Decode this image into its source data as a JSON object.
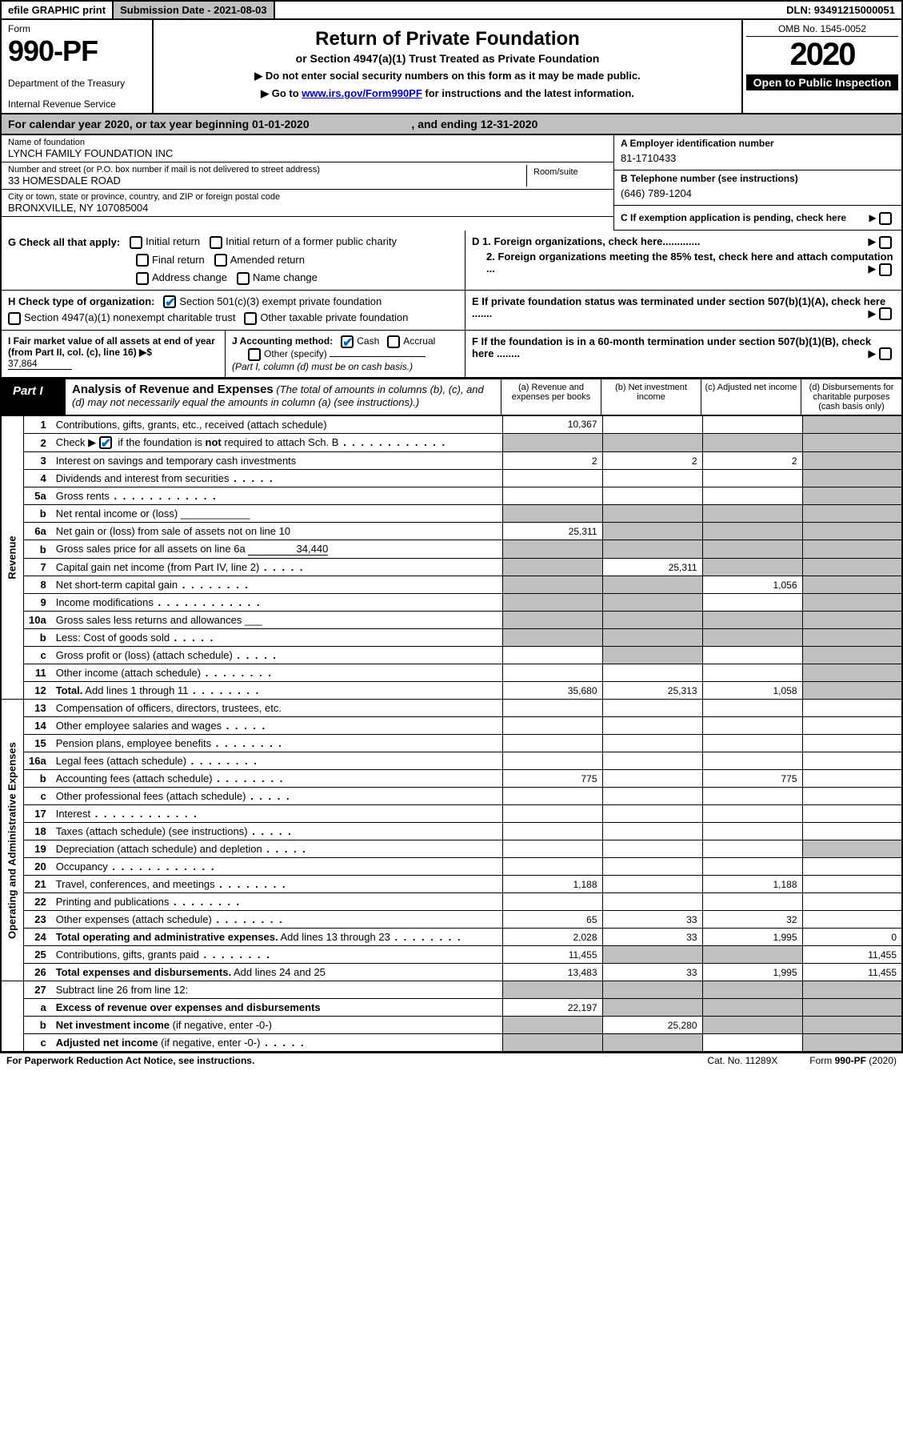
{
  "top": {
    "efile": "efile GRAPHIC print",
    "subdate_label": "Submission Date - 2021-08-03",
    "dln": "DLN: 93491215000051"
  },
  "header": {
    "form": "Form",
    "num": "990-PF",
    "dept": "Department of the Treasury",
    "irs": "Internal Revenue Service",
    "title": "Return of Private Foundation",
    "sub1": "or Section 4947(a)(1) Trust Treated as Private Foundation",
    "sub2a": "▶ Do not enter social security numbers on this form as it may be made public.",
    "sub2b_pre": "▶ Go to ",
    "sub2b_link": "www.irs.gov/Form990PF",
    "sub2b_post": " for instructions and the latest information.",
    "omb": "OMB No. 1545-0052",
    "year": "2020",
    "open": "Open to Public Inspection"
  },
  "cal": {
    "text": "For calendar year 2020, or tax year beginning 01-01-2020",
    "ending": ", and ending 12-31-2020"
  },
  "info": {
    "name_label": "Name of foundation",
    "name": "LYNCH FAMILY FOUNDATION INC",
    "addr_label": "Number and street (or P.O. box number if mail is not delivered to street address)",
    "addr": "33 HOMESDALE ROAD",
    "room_label": "Room/suite",
    "city_label": "City or town, state or province, country, and ZIP or foreign postal code",
    "city": "BRONXVILLE, NY  107085004",
    "a_label": "A Employer identification number",
    "a_val": "81-1710433",
    "b_label": "B Telephone number (see instructions)",
    "b_val": "(646) 789-1204",
    "c_label": "C  If exemption application is pending, check here"
  },
  "checks": {
    "g": "G Check all that apply:",
    "g1": "Initial return",
    "g2": "Initial return of a former public charity",
    "g3": "Final return",
    "g4": "Amended return",
    "g5": "Address change",
    "g6": "Name change",
    "h": "H Check type of organization:",
    "h1": "Section 501(c)(3) exempt private foundation",
    "h2": "Section 4947(a)(1) nonexempt charitable trust",
    "h3": "Other taxable private foundation",
    "i": "I Fair market value of all assets at end of year (from Part II, col. (c), line 16) ▶$ ",
    "i_val": "37,864",
    "j": "J Accounting method:",
    "j1": "Cash",
    "j2": "Accrual",
    "j3": "Other (specify)",
    "j_note": "(Part I, column (d) must be on cash basis.)",
    "d1a": "D 1. Foreign organizations, check here.............",
    "d1b": "2. Foreign organizations meeting the 85% test, check here and attach computation ...",
    "e": "E  If private foundation status was terminated under section 507(b)(1)(A), check here .......",
    "f": "F  If the foundation is in a 60-month termination under section 507(b)(1)(B), check here ........"
  },
  "part1": {
    "label": "Part I",
    "title": "Analysis of Revenue and Expenses",
    "note": " (The total of amounts in columns (b), (c), and (d) may not necessarily equal the amounts in column (a) (see instructions).)",
    "cols": {
      "a": "(a) Revenue and expenses per books",
      "b": "(b) Net investment income",
      "c": "(c) Adjusted net income",
      "d": "(d) Disbursements for charitable purposes (cash basis only)"
    }
  },
  "sections": {
    "rev": "Revenue",
    "exp": "Operating and Administrative Expenses"
  },
  "rows": [
    {
      "n": "1",
      "t": "Contributions, gifts, grants, etc., received (attach schedule)",
      "a": "10,367",
      "b": "",
      "c": "",
      "shadeD": true
    },
    {
      "n": "2",
      "t": "Check ▶ __ if the foundation is <b>not</b> required to attach Sch. B",
      "check2": true,
      "dots": "dots",
      "shadeAll": true
    },
    {
      "n": "3",
      "t": "Interest on savings and temporary cash investments",
      "a": "2",
      "b": "2",
      "c": "2",
      "shadeD": true
    },
    {
      "n": "4",
      "t": "Dividends and interest from securities",
      "dots": "dots-s",
      "shadeD": true
    },
    {
      "n": "5a",
      "t": "Gross rents",
      "dots": "dots",
      "shadeD": true
    },
    {
      "n": "b",
      "t": "Net rental income or (loss) ____________",
      "shadeAll": true
    },
    {
      "n": "6a",
      "t": "Net gain or (loss) from sale of assets not on line 10",
      "a": "25,311",
      "shadeBCD": true,
      "shadeD": true
    },
    {
      "n": "b",
      "t": "Gross sales price for all assets on line 6a ________",
      "bval": "34,440",
      "shadeAll": true
    },
    {
      "n": "7",
      "t": "Capital gain net income (from Part IV, line 2)",
      "dots": "dots-s",
      "b": "25,311",
      "shadeA": true,
      "shadeCD": true
    },
    {
      "n": "8",
      "t": "Net short-term capital gain",
      "dots": "dots-m",
      "c": "1,056",
      "shadeAB": true,
      "shadeD": true
    },
    {
      "n": "9",
      "t": "Income modifications",
      "dots": "dots",
      "shadeAB": true,
      "shadeD": true
    },
    {
      "n": "10a",
      "t": "Gross sales less returns and allowances ___",
      "shadeAll": true
    },
    {
      "n": "b",
      "t": "Less: Cost of goods sold",
      "dots": "dots-s",
      "extra": "___",
      "shadeAll": true
    },
    {
      "n": "c",
      "t": "Gross profit or (loss) (attach schedule)",
      "dots": "dots-s",
      "shadeB": true,
      "shadeD": true
    },
    {
      "n": "11",
      "t": "Other income (attach schedule)",
      "dots": "dots-m",
      "shadeD": true
    },
    {
      "n": "12",
      "t": "<b>Total.</b> Add lines 1 through 11",
      "dots": "dots-m",
      "a": "35,680",
      "b": "25,313",
      "c": "1,058",
      "shadeD": true
    }
  ],
  "rows2": [
    {
      "n": "13",
      "t": "Compensation of officers, directors, trustees, etc."
    },
    {
      "n": "14",
      "t": "Other employee salaries and wages",
      "dots": "dots-s"
    },
    {
      "n": "15",
      "t": "Pension plans, employee benefits",
      "dots": "dots-m"
    },
    {
      "n": "16a",
      "t": "Legal fees (attach schedule)",
      "dots": "dots-m"
    },
    {
      "n": "b",
      "t": "Accounting fees (attach schedule)",
      "dots": "dots-m",
      "a": "775",
      "c": "775"
    },
    {
      "n": "c",
      "t": "Other professional fees (attach schedule)",
      "dots": "dots-s"
    },
    {
      "n": "17",
      "t": "Interest",
      "dots": "dots"
    },
    {
      "n": "18",
      "t": "Taxes (attach schedule) (see instructions)",
      "dots": "dots-s"
    },
    {
      "n": "19",
      "t": "Depreciation (attach schedule) and depletion",
      "dots": "dots-s",
      "shadeD": true
    },
    {
      "n": "20",
      "t": "Occupancy",
      "dots": "dots"
    },
    {
      "n": "21",
      "t": "Travel, conferences, and meetings",
      "dots": "dots-m",
      "a": "1,188",
      "c": "1,188"
    },
    {
      "n": "22",
      "t": "Printing and publications",
      "dots": "dots-m"
    },
    {
      "n": "23",
      "t": "Other expenses (attach schedule)",
      "dots": "dots-m",
      "a": "65",
      "b": "33",
      "c": "32"
    },
    {
      "n": "24",
      "t": "<b>Total operating and administrative expenses.</b> Add lines 13 through 23",
      "dots": "dots-m",
      "a": "2,028",
      "b": "33",
      "c": "1,995",
      "d": "0"
    },
    {
      "n": "25",
      "t": "Contributions, gifts, grants paid",
      "dots": "dots-m",
      "a": "11,455",
      "d": "11,455",
      "shadeBC": true
    },
    {
      "n": "26",
      "t": "<b>Total expenses and disbursements.</b> Add lines 24 and 25",
      "a": "13,483",
      "b": "33",
      "c": "1,995",
      "d": "11,455"
    }
  ],
  "rows3": [
    {
      "n": "27",
      "t": "Subtract line 26 from line 12:",
      "shadeAll": true
    },
    {
      "n": "a",
      "t": "<b>Excess of revenue over expenses and disbursements</b>",
      "a": "22,197",
      "shadeBCD": true
    },
    {
      "n": "b",
      "t": "<b>Net investment income</b> (if negative, enter -0-)",
      "b": "25,280",
      "shadeA": true,
      "shadeCD": true
    },
    {
      "n": "c",
      "t": "<b>Adjusted net income</b> (if negative, enter -0-)",
      "dots": "dots-s",
      "shadeAB": true,
      "shadeD": true
    }
  ],
  "footer": {
    "left": "For Paperwork Reduction Act Notice, see instructions.",
    "mid": "Cat. No. 11289X",
    "right": "Form <b>990-PF</b> (2020)"
  }
}
